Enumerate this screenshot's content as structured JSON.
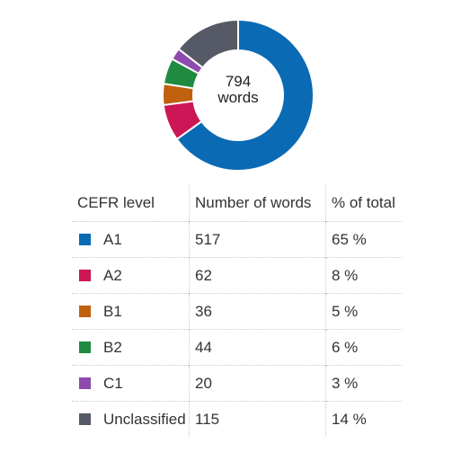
{
  "chart_data": {
    "type": "pie",
    "center_label": {
      "value": "794",
      "unit": "words"
    },
    "columns": [
      "CEFR level",
      "Number of words",
      "% of total"
    ],
    "rows": [
      {
        "level": "A1",
        "count": 517,
        "percent": "65 %",
        "color": "#0a6ab4"
      },
      {
        "level": "A2",
        "count": 62,
        "percent": "8 %",
        "color": "#cc1656"
      },
      {
        "level": "B1",
        "count": 36,
        "percent": "5 %",
        "color": "#c0610f"
      },
      {
        "level": "B2",
        "count": 44,
        "percent": "6 %",
        "color": "#1f8a40"
      },
      {
        "level": "C1",
        "count": 20,
        "percent": "3 %",
        "color": "#8e4aad"
      },
      {
        "level": "Unclassified",
        "count": 115,
        "percent": "14 %",
        "color": "#555a66"
      }
    ]
  }
}
